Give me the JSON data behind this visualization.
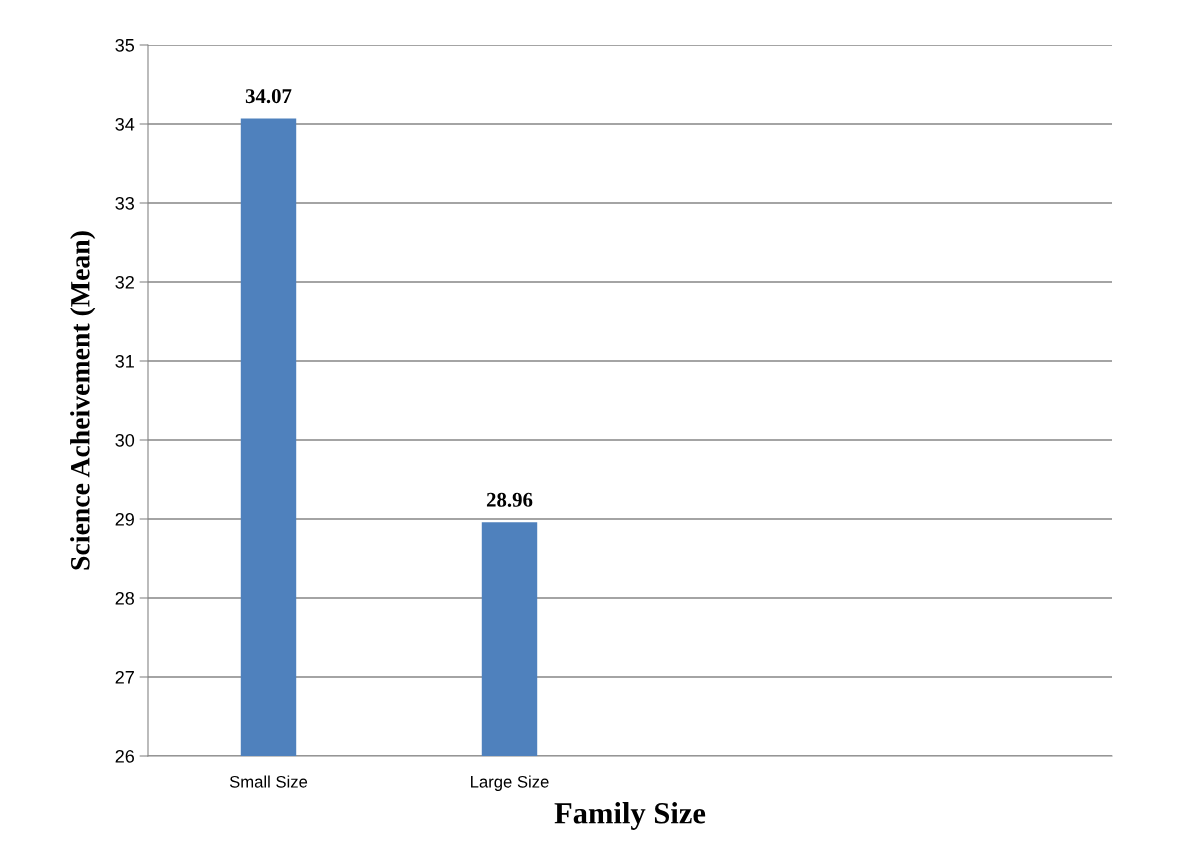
{
  "chart_data": {
    "type": "bar",
    "xlabel": "Family Size",
    "ylabel": "Science Acheivement (Mean)",
    "categories": [
      "Small Size",
      "Large Size",
      null,
      null
    ],
    "values": [
      34.07,
      28.96,
      null,
      null
    ],
    "color": "#4f81bd",
    "ylim": [
      26,
      35
    ],
    "yticks": [
      26,
      27,
      28,
      29,
      30,
      31,
      32,
      33,
      34,
      35
    ],
    "grid": "y",
    "data_labels": true
  }
}
